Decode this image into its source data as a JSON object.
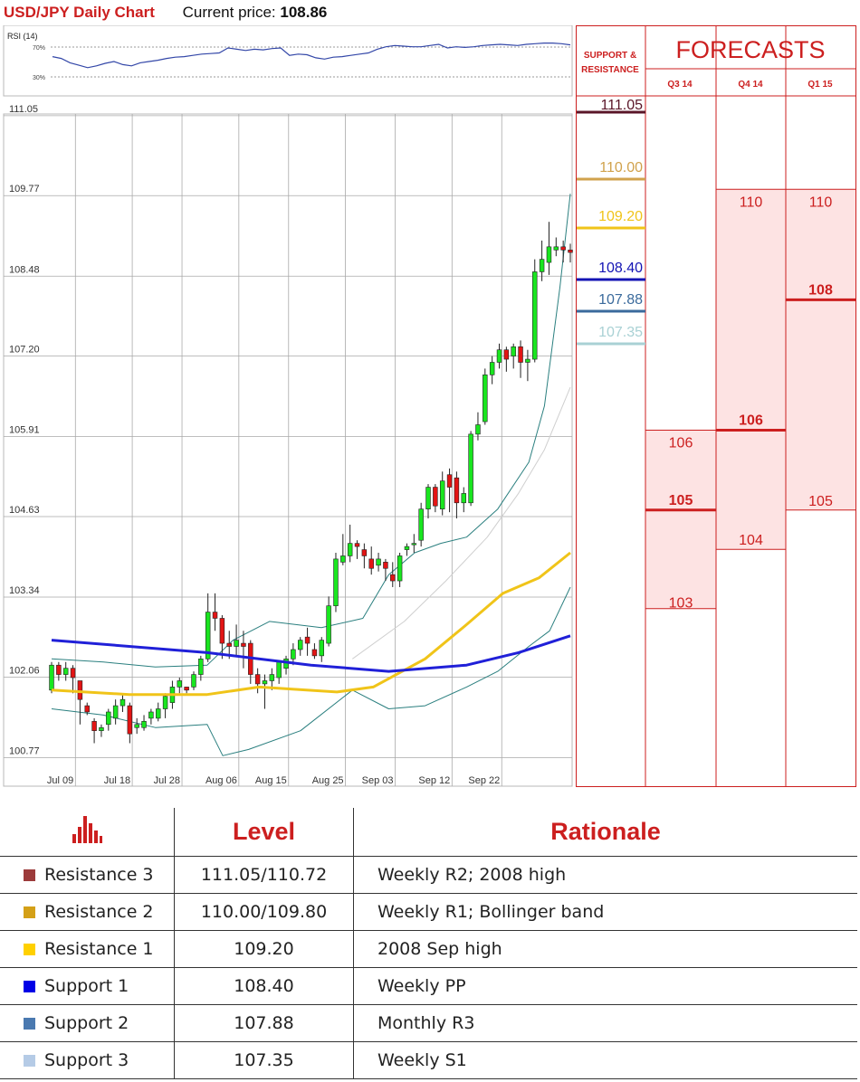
{
  "header": {
    "title": "USD/JPY Daily Chart",
    "price_label": "Current price:",
    "price_value": "108.86"
  },
  "rsi": {
    "label": "RSI (14)",
    "upper": "70%",
    "lower": "30%",
    "values": [
      58,
      55,
      48,
      44,
      40,
      43,
      47,
      50,
      45,
      43,
      48,
      50,
      52,
      55,
      57,
      58,
      60,
      62,
      63,
      64,
      72,
      70,
      68,
      70,
      69,
      71,
      72,
      60,
      62,
      61,
      56,
      54,
      57,
      58,
      60,
      62,
      64,
      70,
      74,
      76,
      75,
      74,
      74,
      76,
      78,
      72,
      74,
      73,
      74,
      76,
      77,
      78,
      77,
      76,
      78,
      79,
      80,
      80,
      79,
      77
    ]
  },
  "chart_data": {
    "type": "candlestick",
    "title": "USD/JPY Daily Chart",
    "ylim": [
      100.5,
      111.15
    ],
    "yticks": [
      "111.05",
      "109.77",
      "108.48",
      "107.20",
      "105.91",
      "104.63",
      "103.34",
      "102.06",
      "100.77"
    ],
    "xticks": [
      "Jul 09",
      "Jul 18",
      "Jul 28",
      "Aug 06",
      "Aug 15",
      "Aug 25",
      "Sep 03",
      "Sep 12",
      "Sep 22"
    ],
    "candles": [
      [
        101.85,
        102.25,
        102.3,
        101.8
      ],
      [
        102.25,
        102.1,
        102.3,
        102.0
      ],
      [
        102.1,
        102.2,
        102.3,
        102.0
      ],
      [
        102.2,
        102.05,
        102.25,
        101.8
      ],
      [
        102.0,
        101.7,
        102.0,
        101.3
      ],
      [
        101.6,
        101.5,
        101.65,
        101.45
      ],
      [
        101.35,
        101.2,
        101.4,
        101.0
      ],
      [
        101.2,
        101.25,
        101.3,
        101.1
      ],
      [
        101.3,
        101.5,
        101.55,
        101.2
      ],
      [
        101.4,
        101.6,
        101.7,
        101.3
      ],
      [
        101.6,
        101.7,
        101.8,
        101.5
      ],
      [
        101.6,
        101.15,
        101.65,
        101.0
      ],
      [
        101.25,
        101.3,
        101.4,
        101.15
      ],
      [
        101.25,
        101.35,
        101.45,
        101.2
      ],
      [
        101.4,
        101.5,
        101.55,
        101.3
      ],
      [
        101.4,
        101.55,
        101.65,
        101.35
      ],
      [
        101.55,
        101.75,
        101.8,
        101.4
      ],
      [
        101.65,
        101.9,
        102.0,
        101.55
      ],
      [
        101.9,
        102.0,
        102.05,
        101.8
      ],
      [
        101.9,
        101.85,
        101.9,
        101.8
      ],
      [
        101.9,
        102.1,
        102.15,
        101.85
      ],
      [
        102.1,
        102.35,
        102.4,
        102.0
      ],
      [
        102.35,
        103.1,
        103.4,
        102.3
      ],
      [
        103.1,
        103.0,
        103.4,
        102.8
      ],
      [
        103.0,
        102.6,
        103.05,
        102.35
      ],
      [
        102.6,
        102.55,
        102.8,
        102.35
      ],
      [
        102.55,
        102.65,
        102.9,
        102.4
      ],
      [
        102.6,
        102.55,
        102.8,
        102.2
      ],
      [
        102.6,
        102.1,
        102.65,
        101.95
      ],
      [
        102.1,
        101.95,
        102.2,
        101.8
      ],
      [
        101.95,
        102.0,
        102.1,
        101.55
      ],
      [
        102.0,
        102.1,
        102.2,
        101.85
      ],
      [
        102.05,
        102.3,
        102.3,
        101.95
      ],
      [
        102.2,
        102.35,
        102.4,
        102.1
      ],
      [
        102.35,
        102.5,
        102.6,
        102.25
      ],
      [
        102.5,
        102.65,
        102.7,
        102.4
      ],
      [
        102.7,
        102.6,
        102.85,
        102.4
      ],
      [
        102.5,
        102.4,
        102.6,
        102.35
      ],
      [
        102.4,
        102.65,
        102.7,
        102.3
      ],
      [
        102.6,
        103.2,
        103.35,
        102.55
      ],
      [
        103.2,
        103.95,
        104.05,
        103.1
      ],
      [
        103.9,
        104.0,
        104.35,
        103.85
      ],
      [
        104.0,
        104.2,
        104.5,
        103.9
      ],
      [
        104.2,
        104.15,
        104.25,
        103.95
      ],
      [
        104.1,
        104.0,
        104.2,
        103.8
      ],
      [
        103.95,
        103.8,
        104.15,
        103.7
      ],
      [
        103.85,
        103.95,
        104.05,
        103.75
      ],
      [
        103.9,
        103.8,
        103.95,
        103.6
      ],
      [
        103.7,
        103.6,
        103.9,
        103.5
      ],
      [
        103.6,
        104.0,
        104.05,
        103.5
      ],
      [
        104.1,
        104.15,
        104.2,
        104.0
      ],
      [
        104.2,
        104.2,
        104.35,
        104.05
      ],
      [
        104.25,
        104.75,
        104.85,
        104.15
      ],
      [
        104.75,
        105.1,
        105.15,
        104.6
      ],
      [
        105.1,
        104.8,
        105.15,
        104.7
      ],
      [
        104.75,
        105.2,
        105.35,
        104.65
      ],
      [
        105.3,
        105.1,
        105.4,
        104.7
      ],
      [
        105.25,
        104.85,
        105.35,
        104.6
      ],
      [
        104.85,
        105.0,
        105.1,
        104.7
      ],
      [
        104.85,
        105.95,
        106.0,
        104.8
      ],
      [
        105.95,
        106.1,
        106.3,
        105.85
      ],
      [
        106.15,
        106.9,
        107.0,
        106.1
      ],
      [
        106.9,
        107.1,
        107.2,
        106.75
      ],
      [
        107.1,
        107.3,
        107.4,
        107.0
      ],
      [
        107.3,
        107.15,
        107.35,
        106.95
      ],
      [
        107.2,
        107.35,
        107.4,
        107.0
      ],
      [
        107.35,
        107.1,
        107.45,
        106.85
      ],
      [
        107.1,
        107.15,
        107.3,
        106.8
      ],
      [
        107.15,
        108.55,
        108.75,
        107.1
      ],
      [
        108.55,
        108.75,
        109.05,
        108.4
      ],
      [
        108.7,
        108.95,
        109.35,
        108.5
      ],
      [
        108.9,
        108.95,
        109.1,
        108.8
      ],
      [
        108.95,
        108.9,
        109.05,
        108.7
      ],
      [
        108.9,
        108.86,
        109.0,
        108.7
      ]
    ],
    "indicators": {
      "sma_long": {
        "name": "blue",
        "values": [
          [
            0,
            102.65
          ],
          [
            0.3,
            102.45
          ],
          [
            0.5,
            102.25
          ],
          [
            0.65,
            102.15
          ],
          [
            0.8,
            102.25
          ],
          [
            0.9,
            102.45
          ],
          [
            1.0,
            102.72
          ]
        ]
      },
      "sma_mid": {
        "name": "yellow",
        "values": [
          [
            0,
            101.85
          ],
          [
            0.15,
            101.78
          ],
          [
            0.3,
            101.78
          ],
          [
            0.4,
            101.9
          ],
          [
            0.55,
            101.82
          ],
          [
            0.62,
            101.9
          ],
          [
            0.72,
            102.35
          ],
          [
            0.8,
            102.9
          ],
          [
            0.87,
            103.4
          ],
          [
            0.94,
            103.65
          ],
          [
            1.0,
            104.05
          ]
        ]
      },
      "bb_upper": {
        "values": [
          [
            0,
            102.35
          ],
          [
            0.1,
            102.3
          ],
          [
            0.2,
            102.22
          ],
          [
            0.3,
            102.25
          ],
          [
            0.35,
            102.65
          ],
          [
            0.42,
            102.95
          ],
          [
            0.52,
            102.85
          ],
          [
            0.6,
            103.0
          ],
          [
            0.65,
            103.7
          ],
          [
            0.7,
            104.05
          ],
          [
            0.75,
            104.2
          ],
          [
            0.8,
            104.3
          ],
          [
            0.86,
            104.75
          ],
          [
            0.92,
            105.5
          ],
          [
            0.95,
            106.4
          ],
          [
            0.98,
            108.3
          ],
          [
            1.0,
            109.8
          ]
        ]
      },
      "bb_lower": {
        "values": [
          [
            0,
            101.55
          ],
          [
            0.1,
            101.45
          ],
          [
            0.2,
            101.25
          ],
          [
            0.3,
            101.3
          ],
          [
            0.33,
            100.8
          ],
          [
            0.38,
            100.9
          ],
          [
            0.48,
            101.2
          ],
          [
            0.58,
            101.85
          ],
          [
            0.65,
            101.55
          ],
          [
            0.72,
            101.6
          ],
          [
            0.8,
            101.9
          ],
          [
            0.86,
            102.15
          ],
          [
            0.92,
            102.55
          ],
          [
            0.96,
            102.8
          ],
          [
            1.0,
            103.5
          ]
        ]
      },
      "sma_short": {
        "values": [
          [
            0.58,
            102.35
          ],
          [
            0.68,
            102.95
          ],
          [
            0.76,
            103.6
          ],
          [
            0.84,
            104.3
          ],
          [
            0.9,
            105.0
          ],
          [
            0.95,
            105.7
          ],
          [
            1.0,
            106.7
          ]
        ]
      }
    }
  },
  "forecasts": {
    "title": "FORECASTS",
    "sr_title_1": "SUPPORT &",
    "sr_title_2": "RESISTANCE",
    "columns": [
      "Q3 14",
      "Q4 14",
      "Q1 15"
    ],
    "levels": [
      {
        "value": "111.05",
        "color": "#5a1628"
      },
      {
        "value": "110.00",
        "color": "#d1a24c"
      },
      {
        "value": "109.20",
        "color": "#f0c419"
      },
      {
        "value": "108.40",
        "color": "#1414b4"
      },
      {
        "value": "107.88",
        "color": "#3a6a9c"
      },
      {
        "value": "107.35",
        "color": "#a9d1d4"
      }
    ],
    "q3": {
      "high": "106",
      "mid": "105",
      "low": "103"
    },
    "q4": {
      "high": "110",
      "mid": "106",
      "low": "104"
    },
    "q1": {
      "high": "110",
      "mid": "108",
      "low": "105"
    }
  },
  "table": {
    "headers": {
      "icon": "bar-chart-icon",
      "level": "Level",
      "rationale": "Rationale"
    },
    "rows": [
      {
        "name": "Resistance 3",
        "level": "111.05/110.72",
        "rationale": "Weekly R2; 2008 high",
        "color": "#9c3b3b"
      },
      {
        "name": "Resistance 2",
        "level": "110.00/109.80",
        "rationale": "Weekly R1; Bollinger band",
        "color": "#d4a017"
      },
      {
        "name": "Resistance 1",
        "level": "109.20",
        "rationale": "2008 Sep high",
        "color": "#ffd000"
      },
      {
        "name": "Support 1",
        "level": "108.40",
        "rationale": "Weekly PP",
        "color": "#0000e6"
      },
      {
        "name": "Support 2",
        "level": "107.88",
        "rationale": "Monthly R3",
        "color": "#4a79b0"
      },
      {
        "name": "Support 3",
        "level": "107.35",
        "rationale": "Weekly S1",
        "color": "#b5cbe6"
      }
    ]
  }
}
